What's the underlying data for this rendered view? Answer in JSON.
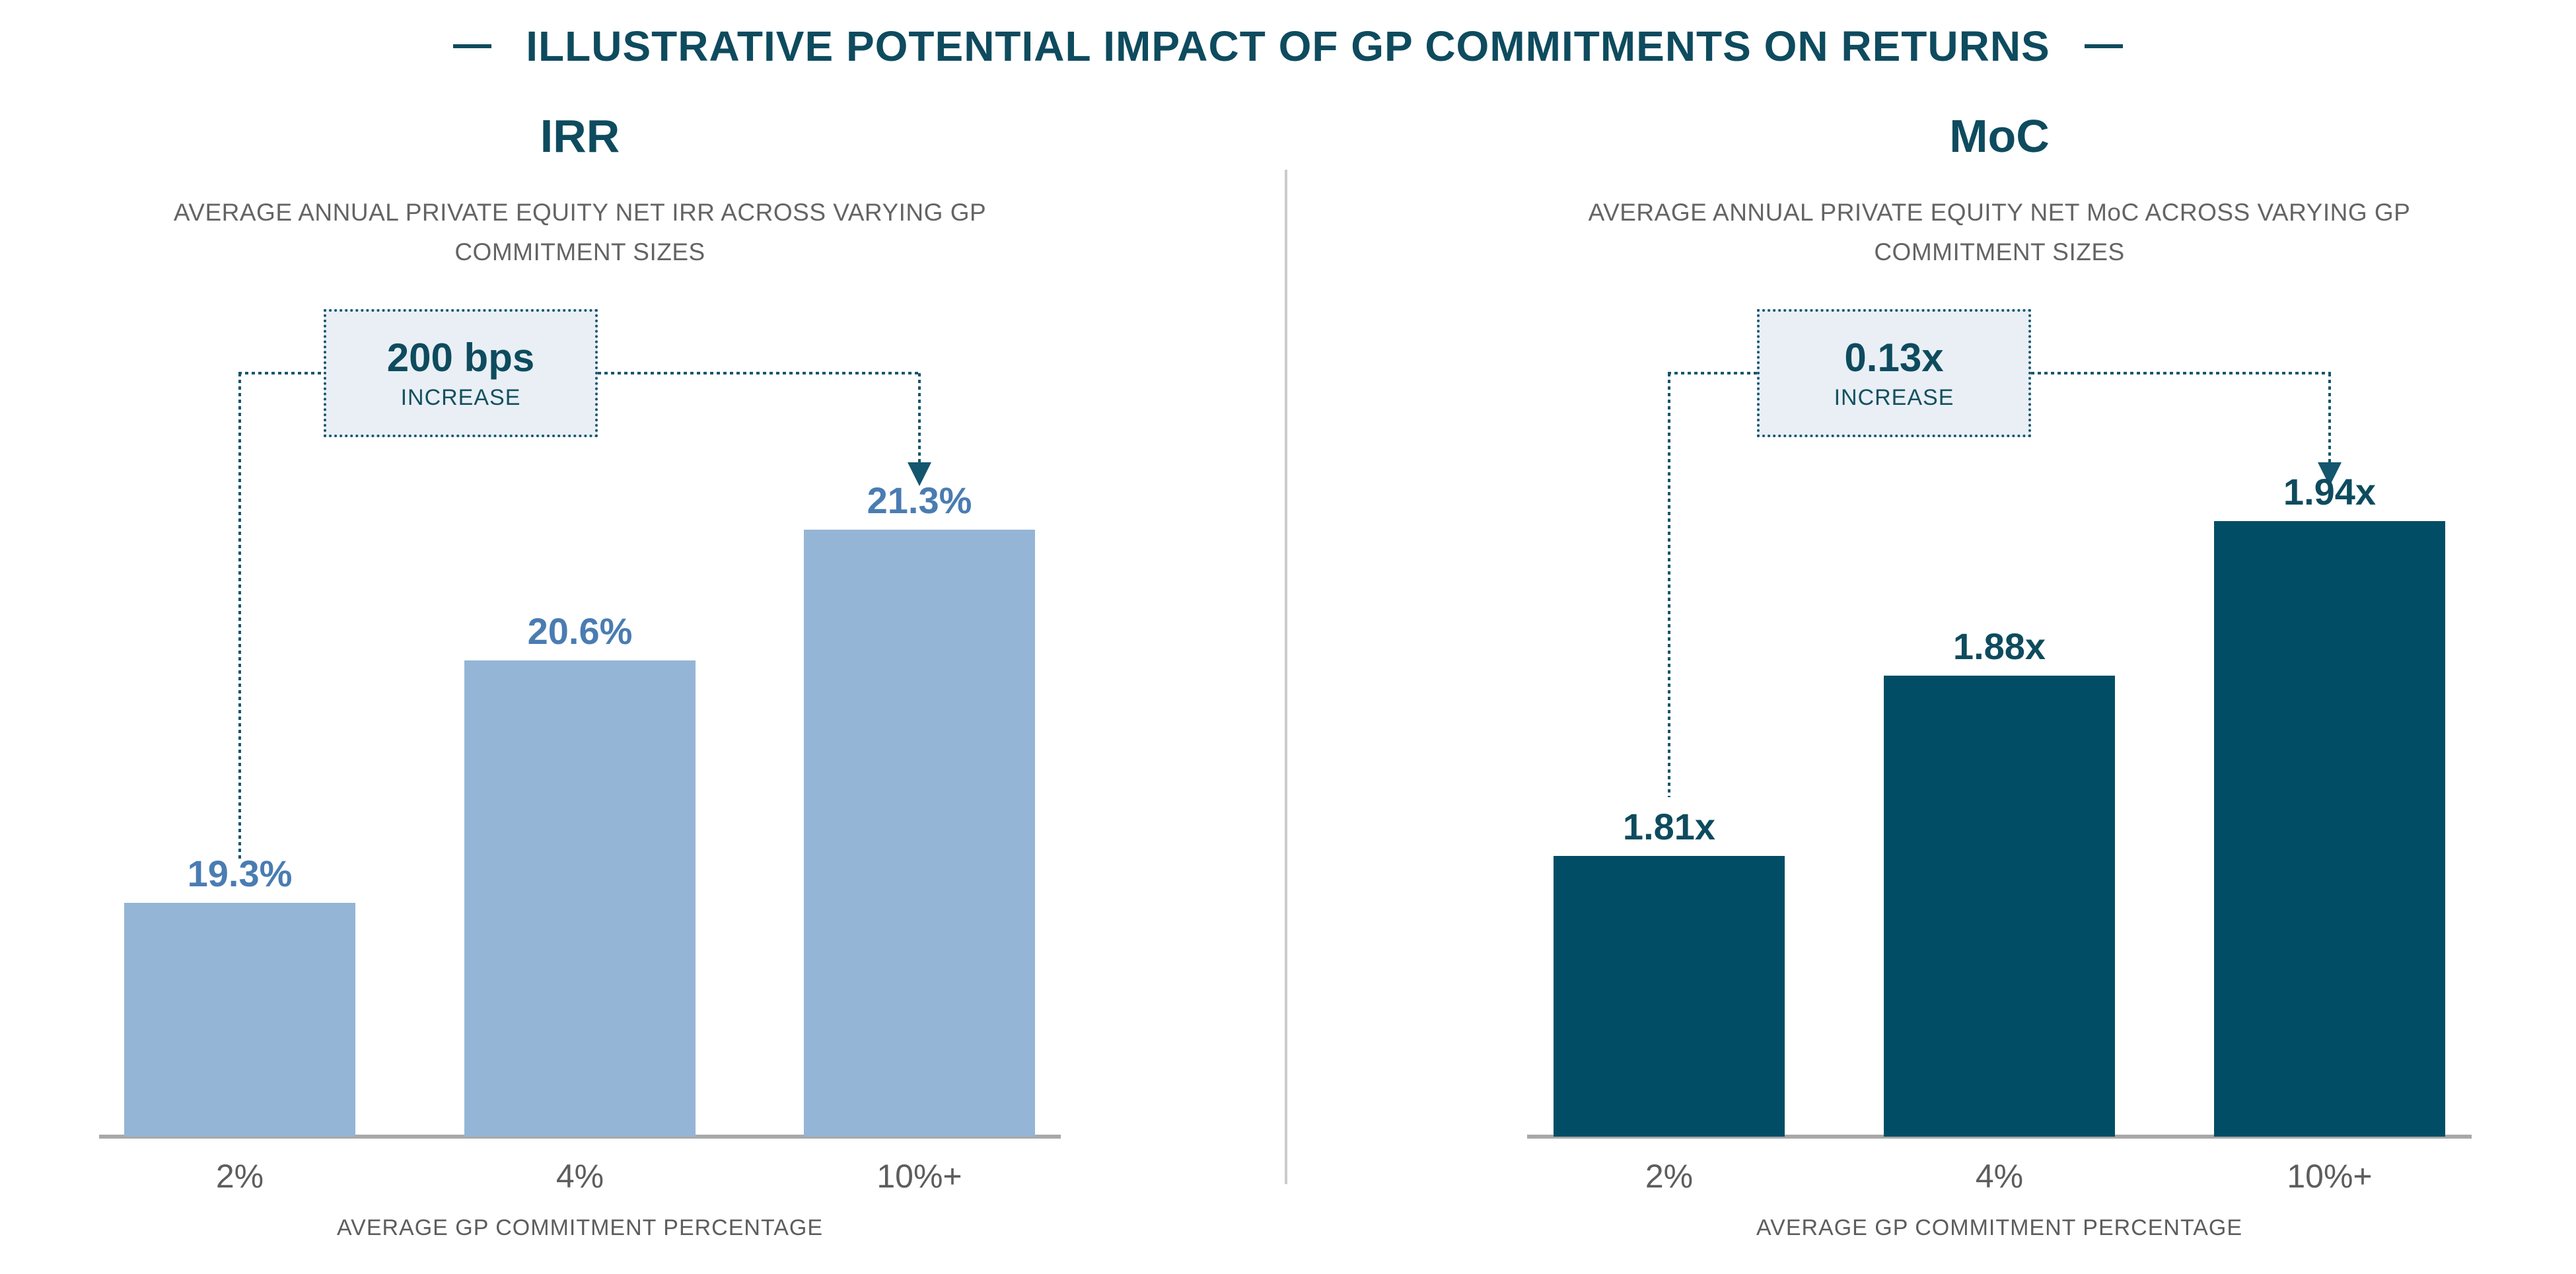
{
  "title": "ILLUSTRATIVE POTENTIAL IMPACT OF GP COMMITMENTS ON RETURNS",
  "colors": {
    "accent_teal_text": "#0e4b5e",
    "connector_teal": "#14566e",
    "light_blue_bar": "#94b5d6",
    "medium_blue_label": "#4a7cb2",
    "dark_teal_bar": "#024d66",
    "gray_text": "#5d5d5d",
    "subtitle_gray": "#646464",
    "axis_gray": "#a8a8a8",
    "divider_gray": "#cbcbcb",
    "callout_bg": "#e9eff5"
  },
  "chart_data": [
    {
      "type": "bar",
      "title": "IRR",
      "subtitle_lines": [
        "AVERAGE ANNUAL PRIVATE EQUITY NET IRR ACROSS VARYING GP",
        "COMMITMENT SIZES"
      ],
      "categories": [
        "2%",
        "4%",
        "10%+"
      ],
      "values": [
        19.3,
        20.6,
        21.3
      ],
      "value_labels": [
        "19.3%",
        "20.6%",
        "21.3%"
      ],
      "callout": {
        "value": "200 bps",
        "label": "INCREASE"
      },
      "xlabel": "AVERAGE GP COMMITMENT PERCENTAGE",
      "ylabel": "",
      "ylim": [
        18.05,
        21.55
      ],
      "grid": false,
      "bar_color": "#94b5d6",
      "label_color": "#4a7cb2"
    },
    {
      "type": "bar",
      "title": "MoC",
      "subtitle_lines": [
        "AVERAGE ANNUAL PRIVATE EQUITY NET MoC ACROSS VARYING GP",
        "COMMITMENT SIZES"
      ],
      "categories": [
        "2%",
        "4%",
        "10%+"
      ],
      "values": [
        1.81,
        1.88,
        1.94
      ],
      "value_labels": [
        "1.81x",
        "1.88x",
        "1.94x"
      ],
      "callout": {
        "value": "0.13x",
        "label": "INCREASE"
      },
      "xlabel": "AVERAGE GP COMMITMENT PERCENTAGE",
      "ylabel": "",
      "ylim": [
        1.701,
        1.955
      ],
      "grid": false,
      "bar_color": "#024d66",
      "label_color": "#0e4b5e"
    }
  ]
}
